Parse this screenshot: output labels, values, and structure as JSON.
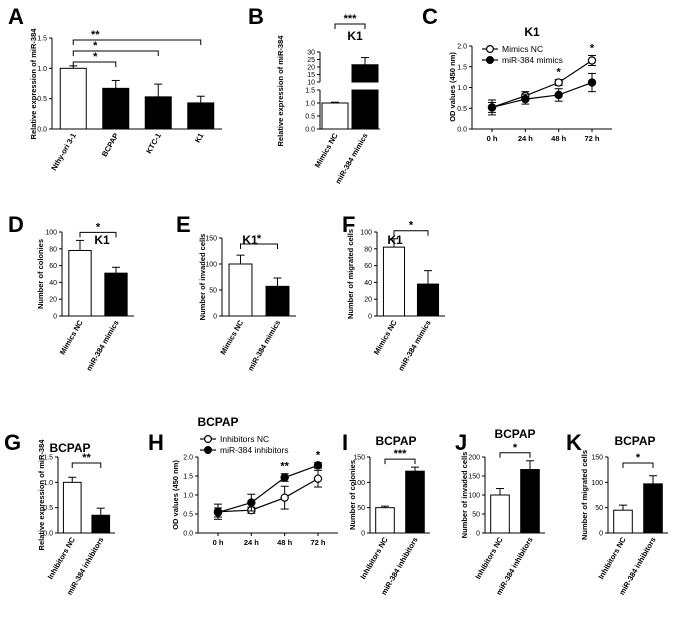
{
  "chart_data": [
    {
      "id": "A",
      "type": "bar",
      "letter": "A",
      "title": "",
      "ylabel": "Relative expression of miR-384",
      "ylim": [
        0,
        1.5
      ],
      "ticks": [
        0.0,
        0.5,
        1.0,
        1.5
      ],
      "tick_labels": [
        "0.0",
        "0.5",
        "1.0",
        "1.5"
      ],
      "categories": [
        "Nthy-ori 3-1",
        "BCPAP",
        "KTC-1",
        "K1"
      ],
      "values": [
        1.0,
        0.67,
        0.53,
        0.43
      ],
      "errors": [
        0.04,
        0.13,
        0.21,
        0.11
      ],
      "fills": [
        "#ffffff",
        "#000000",
        "#000000",
        "#000000"
      ],
      "significance": [
        {
          "from": 0,
          "to": 1,
          "label": "*"
        },
        {
          "from": 0,
          "to": 2,
          "label": "*"
        },
        {
          "from": 0,
          "to": 3,
          "label": "**"
        }
      ]
    },
    {
      "id": "B",
      "type": "bar",
      "letter": "B",
      "title": "K1",
      "ylabel": "Relative expression of miR-384",
      "axis_break": true,
      "ylim_lower": [
        0,
        1.5
      ],
      "ylim_upper": [
        10,
        30
      ],
      "tick_labels": [
        "0.0",
        "0.5",
        "1.0",
        "1.5",
        "10",
        "15",
        "20",
        "25",
        "30"
      ],
      "categories": [
        "Mimics NC",
        "miR-384 mimics"
      ],
      "values": [
        1.0,
        21.5
      ],
      "errors": [
        0.03,
        4.8
      ],
      "fills": [
        "#ffffff",
        "#000000"
      ],
      "significance": [
        {
          "from": 0,
          "to": 1,
          "label": "***"
        }
      ]
    },
    {
      "id": "C",
      "type": "line",
      "letter": "C",
      "title": "K1",
      "ylabel": "OD values (450 nm)",
      "ylim": [
        0,
        2.0
      ],
      "ticks": [
        0.0,
        0.5,
        1.0,
        1.5,
        2.0
      ],
      "tick_labels": [
        "0.0",
        "0.5",
        "1.0",
        "1.5",
        "2.0"
      ],
      "x": [
        "0 h",
        "24 h",
        "48 h",
        "72 h"
      ],
      "series": [
        {
          "name": "Mimics NC",
          "values": [
            0.52,
            0.8,
            1.12,
            1.65
          ],
          "errors": [
            0.18,
            0.1,
            0.07,
            0.12
          ],
          "marker": "open"
        },
        {
          "name": "miR-384 mimics",
          "values": [
            0.52,
            0.72,
            0.82,
            1.12
          ],
          "errors": [
            0.12,
            0.12,
            0.15,
            0.22
          ],
          "marker": "filled"
        }
      ],
      "significance": [
        {
          "at": 2,
          "label": "*"
        },
        {
          "at": 3,
          "label": "*"
        }
      ]
    },
    {
      "id": "D",
      "type": "bar",
      "letter": "D",
      "title": "K1",
      "ylabel": "Number of colonies",
      "ylim": [
        0,
        100
      ],
      "ticks": [
        0,
        20,
        40,
        60,
        80,
        100
      ],
      "tick_labels": [
        "0",
        "20",
        "40",
        "60",
        "80",
        "100"
      ],
      "categories": [
        "Mimics NC",
        "miR-384 mimics"
      ],
      "values": [
        78,
        51
      ],
      "errors": [
        12,
        7
      ],
      "fills": [
        "#ffffff",
        "#000000"
      ],
      "significance": [
        {
          "from": 0,
          "to": 1,
          "label": "*"
        }
      ]
    },
    {
      "id": "E",
      "type": "bar",
      "letter": "E",
      "title": "K1",
      "ylabel": "Number of invaded cells",
      "ylim": [
        0,
        150
      ],
      "ticks": [
        0,
        50,
        100,
        150
      ],
      "tick_labels": [
        "0",
        "50",
        "100",
        "150"
      ],
      "categories": [
        "Mimics NC",
        "miR-384 mimics"
      ],
      "values": [
        100,
        57
      ],
      "errors": [
        17,
        16
      ],
      "fills": [
        "#ffffff",
        "#000000"
      ],
      "significance": [
        {
          "from": 0,
          "to": 1,
          "label": "*"
        }
      ]
    },
    {
      "id": "F",
      "type": "bar",
      "letter": "F",
      "title": "K1",
      "ylabel": "Number of migrated cells",
      "ylim": [
        0,
        100
      ],
      "ticks": [
        0,
        20,
        40,
        60,
        80,
        100
      ],
      "tick_labels": [
        "0",
        "20",
        "40",
        "60",
        "80",
        "100"
      ],
      "categories": [
        "Mimics NC",
        "miR-384 mimics"
      ],
      "values": [
        82,
        38
      ],
      "errors": [
        10,
        16
      ],
      "fills": [
        "#ffffff",
        "#000000"
      ],
      "significance": [
        {
          "from": 0,
          "to": 1,
          "label": "*"
        }
      ]
    },
    {
      "id": "G",
      "type": "bar",
      "letter": "G",
      "title": "BCPAP",
      "ylabel": "Relative expression of miR-384",
      "ylim": [
        0,
        1.5
      ],
      "ticks": [
        0.0,
        0.5,
        1.0,
        1.5
      ],
      "tick_labels": [
        "0.0",
        "0.5",
        "1.0",
        "1.5"
      ],
      "categories": [
        "Inhibitors NC",
        "miR-384 inhibitors"
      ],
      "values": [
        1.0,
        0.35
      ],
      "errors": [
        0.1,
        0.14
      ],
      "fills": [
        "#ffffff",
        "#000000"
      ],
      "significance": [
        {
          "from": 0,
          "to": 1,
          "label": "**"
        }
      ]
    },
    {
      "id": "H",
      "type": "line",
      "letter": "H",
      "title": "BCPAP",
      "ylabel": "OD values (450 nm)",
      "ylim": [
        0,
        2.0
      ],
      "ticks": [
        0.0,
        0.5,
        1.0,
        1.5,
        2.0
      ],
      "tick_labels": [
        "0.0",
        "0.5",
        "1.0",
        "1.5",
        "2.0"
      ],
      "x": [
        "0 h",
        "24 h",
        "48 h",
        "72 h"
      ],
      "series": [
        {
          "name": "Inhibitors NC",
          "values": [
            0.56,
            0.6,
            0.93,
            1.43
          ],
          "errors": [
            0.2,
            0.08,
            0.3,
            0.22
          ],
          "marker": "open"
        },
        {
          "name": "miR-384 inhibitors",
          "values": [
            0.54,
            0.8,
            1.46,
            1.78
          ],
          "errors": [
            0.12,
            0.22,
            0.1,
            0.07
          ],
          "marker": "filled"
        }
      ],
      "significance": [
        {
          "at": 2,
          "label": "**"
        },
        {
          "at": 3,
          "label": "*"
        }
      ]
    },
    {
      "id": "I",
      "type": "bar",
      "letter": "I",
      "title": "BCPAP",
      "ylabel": "Number of colonies",
      "ylim": [
        0,
        150
      ],
      "ticks": [
        0,
        50,
        100,
        150
      ],
      "tick_labels": [
        "0",
        "50",
        "100",
        "150"
      ],
      "categories": [
        "Inhibitors NC",
        "miR-384 inhibitors"
      ],
      "values": [
        50,
        122
      ],
      "errors": [
        3,
        8
      ],
      "fills": [
        "#ffffff",
        "#000000"
      ],
      "significance": [
        {
          "from": 0,
          "to": 1,
          "label": "***"
        }
      ]
    },
    {
      "id": "J",
      "type": "bar",
      "letter": "J",
      "title": "BCPAP",
      "ylabel": "Number of invaded cells",
      "ylim": [
        0,
        200
      ],
      "ticks": [
        0,
        50,
        100,
        150,
        200
      ],
      "tick_labels": [
        "0",
        "50",
        "100",
        "150",
        "200"
      ],
      "categories": [
        "Inhibitors NC",
        "miR-384 inhibitors"
      ],
      "values": [
        100,
        167
      ],
      "errors": [
        17,
        23
      ],
      "fills": [
        "#ffffff",
        "#000000"
      ],
      "significance": [
        {
          "from": 0,
          "to": 1,
          "label": "*"
        }
      ]
    },
    {
      "id": "K",
      "type": "bar",
      "letter": "K",
      "title": "BCPAP",
      "ylabel": "Number of migrated cells",
      "ylim": [
        0,
        150
      ],
      "ticks": [
        0,
        50,
        100,
        150
      ],
      "tick_labels": [
        "0",
        "50",
        "100",
        "150"
      ],
      "categories": [
        "Inhibitors NC",
        "miR-384 inhibitors"
      ],
      "values": [
        45,
        97
      ],
      "errors": [
        10,
        16
      ],
      "fills": [
        "#ffffff",
        "#000000"
      ],
      "significance": [
        {
          "from": 0,
          "to": 1,
          "label": "*"
        }
      ]
    }
  ]
}
